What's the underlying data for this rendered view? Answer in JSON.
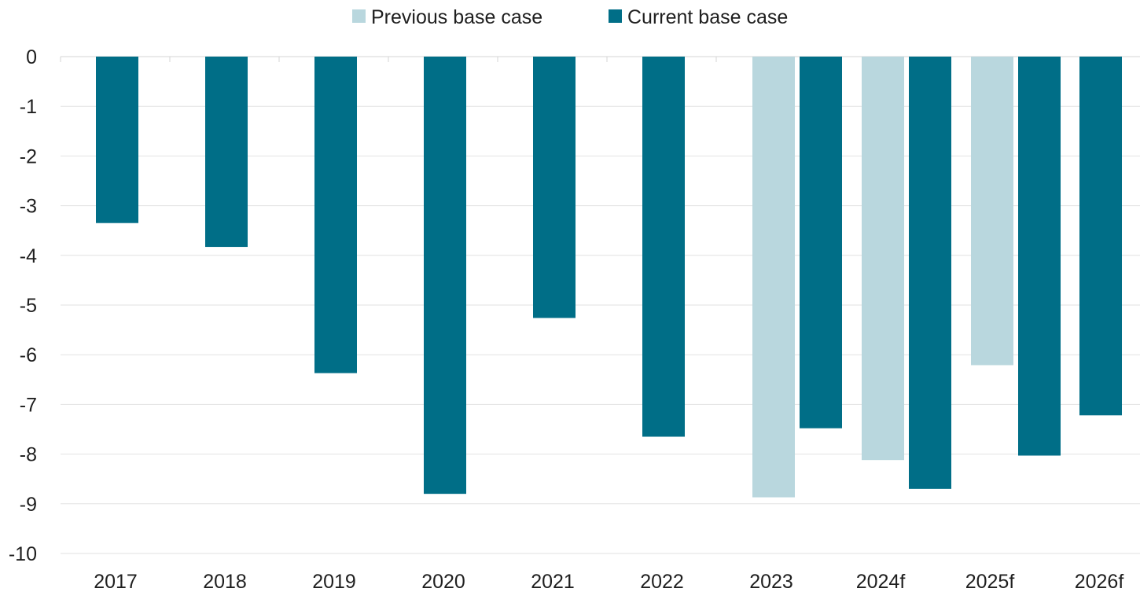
{
  "chart_data": {
    "type": "bar",
    "categories": [
      "2017",
      "2018",
      "2019",
      "2020",
      "2021",
      "2022",
      "2023",
      "2024f",
      "2025f",
      "2026f"
    ],
    "series": [
      {
        "name": "Previous base case",
        "color": "#b9d7de",
        "values": [
          null,
          null,
          null,
          null,
          null,
          null,
          -8.87,
          -8.12,
          -6.21,
          null
        ]
      },
      {
        "name": "Current base case",
        "color": "#006e87",
        "values": [
          -3.35,
          -3.83,
          -6.37,
          -8.8,
          -5.26,
          -7.65,
          -7.48,
          -8.7,
          -8.03,
          -7.22
        ]
      }
    ],
    "ylim": [
      -10,
      0
    ],
    "yticks": [
      0,
      -1,
      -2,
      -3,
      -4,
      -5,
      -6,
      -7,
      -8,
      -9,
      -10
    ],
    "grid": true,
    "legend": "top-center",
    "title": "",
    "xlabel": "",
    "ylabel": ""
  }
}
